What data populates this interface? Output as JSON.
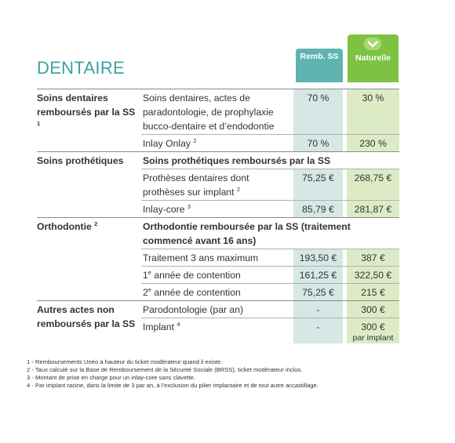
{
  "header": {
    "title": "DENTAIRE",
    "columns": [
      "Remb. SS",
      "Naturelle"
    ]
  },
  "sections": [
    {
      "name": "Soins dentaires remboursés par la SS",
      "note": "1",
      "rows": [
        {
          "label": "Soins dentaires, actes de paradontologie, de prophylaxie bucco-dentaire et d’endodontie",
          "ss": "70 %",
          "naturelle": "30 %"
        },
        {
          "label": "Inlay Onlay",
          "note": "2",
          "ss": "70 %",
          "naturelle": "230 %"
        }
      ]
    },
    {
      "name": "Soins prothétiques",
      "subtitle": "Soins prothétiques remboursés par la SS",
      "rows": [
        {
          "label": "Prothèses dentaires dont prothèses sur implant",
          "note": "2",
          "ss": "75,25 €",
          "naturelle": "268,75 €"
        },
        {
          "label": "Inlay-core",
          "note": "3",
          "ss": "85,79 €",
          "naturelle": "281,87 €"
        }
      ]
    },
    {
      "name": "Orthodontie",
      "note": "2",
      "subtitle": "Orthodontie remboursée par la SS (traitement commencé avant 16 ans)",
      "rows": [
        {
          "label": "Traitement 3 ans maximum",
          "ss": "193,50 €",
          "naturelle": "387 €"
        },
        {
          "pre": "1",
          "sup": "e",
          "label": " année de contention",
          "ss": "161,25 €",
          "naturelle": "322,50 €"
        },
        {
          "pre": "2",
          "sup": "e",
          "label": " année de contention",
          "ss": "75,25 €",
          "naturelle": "215 €"
        }
      ]
    },
    {
      "name": "Autres actes non remboursés par la SS",
      "rows": [
        {
          "label": "Parodontologie (par an)",
          "ss": "-",
          "naturelle": "300 €"
        },
        {
          "label": "Implant",
          "note": "4",
          "ss": "-",
          "naturelle": "300 €",
          "naturelle_detail": "par implant"
        }
      ]
    }
  ],
  "footnotes": [
    "1 - Remboursements Unéo à hauteur du ticket modérateur quand il existe.",
    "2 - Taux calculé sur la Base de Remboursement de la Sécurité Sociale (BRSS), ticket modérateur inclus.",
    "3 - Montant de prise en charge pour un inlay-core sans clavette.",
    "4 - Par implant racine, dans la limite de 3 par an, à l’exclusion du pilier implantaire et de tout autre accastillage."
  ]
}
